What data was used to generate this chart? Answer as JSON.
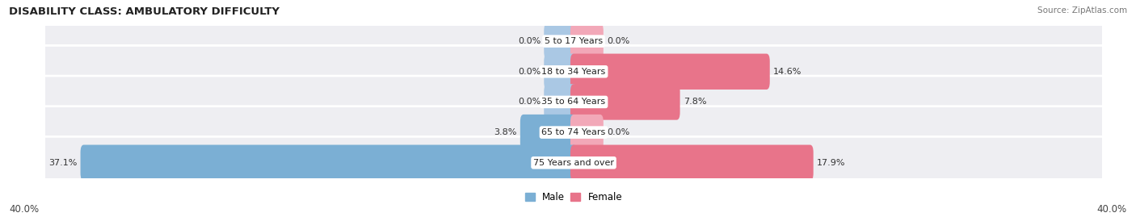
{
  "title": "DISABILITY CLASS: AMBULATORY DIFFICULTY",
  "source": "Source: ZipAtlas.com",
  "categories": [
    "5 to 17 Years",
    "18 to 34 Years",
    "35 to 64 Years",
    "65 to 74 Years",
    "75 Years and over"
  ],
  "male_values": [
    0.0,
    0.0,
    0.0,
    3.8,
    37.1
  ],
  "female_values": [
    0.0,
    14.6,
    7.8,
    0.0,
    17.9
  ],
  "max_value": 40.0,
  "stub_size": 2.0,
  "male_color": "#7bafd4",
  "female_color": "#e8748a",
  "male_stub_color": "#aac8e4",
  "female_stub_color": "#f2a8b8",
  "row_bg_color": "#eeeef2",
  "row_bg_edge": "#d8d8e0",
  "label_color": "#333333",
  "title_color": "#222222",
  "title_fontsize": 9.5,
  "source_fontsize": 7.5,
  "bar_label_fontsize": 8.0,
  "cat_label_fontsize": 8.0,
  "legend_fontsize": 8.5,
  "axis_label_fontsize": 8.5,
  "legend_male_color": "#7bafd4",
  "legend_female_color": "#e8748a",
  "axis_label_left": "40.0%",
  "axis_label_right": "40.0%"
}
